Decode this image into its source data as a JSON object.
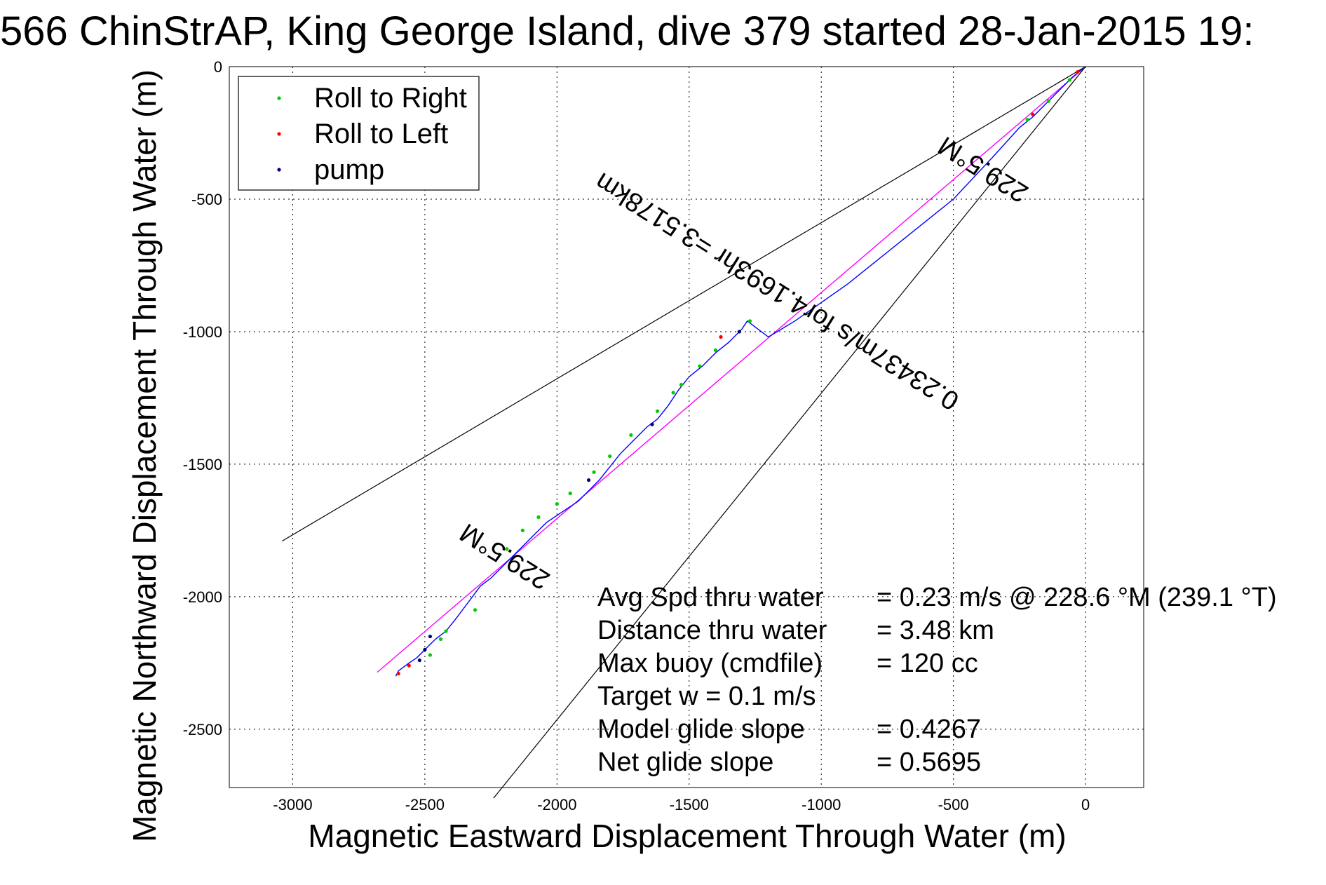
{
  "chart_data": {
    "type": "line",
    "title": "566 ChinStrAP, King George Island, dive 379 started 28-Jan-2015 19:",
    "xlabel": "Magnetic Eastward Displacement Through Water (m)",
    "ylabel": "Magnetic Northward Displacement Through Water (m)",
    "xlim": [
      -3240,
      220
    ],
    "ylim": [
      -2720,
      0
    ],
    "xticks": [
      -3000,
      -2500,
      -2000,
      -1500,
      -1000,
      -500,
      0
    ],
    "yticks": [
      0,
      -500,
      -1000,
      -1500,
      -2000,
      -2500
    ],
    "grid": true,
    "legend_position": "top-left",
    "legend": [
      "Roll to Right",
      "Roll to Left",
      "pump"
    ],
    "colors": {
      "track": "#0000ff",
      "roll_right": "#00cc00",
      "roll_left": "#ff0000",
      "pump": "#000080",
      "heading_line": "#ff00ff",
      "bounds": "#000000"
    },
    "track": {
      "x": [
        0,
        -50,
        -100,
        -150,
        -200,
        -250,
        -350,
        -500,
        -600,
        -700,
        -800,
        -900,
        -1000,
        -1100,
        -1200,
        -1280,
        -1300,
        -1350,
        -1400,
        -1450,
        -1500,
        -1540,
        -1580,
        -1620,
        -1660,
        -1700,
        -1760,
        -1800,
        -1840,
        -1880,
        -1920,
        -1980,
        -2040,
        -2100,
        -2150,
        -2200,
        -2250,
        -2290,
        -2320,
        -2350,
        -2380,
        -2420,
        -2460,
        -2480,
        -2500,
        -2530,
        -2560,
        -2600,
        -2610
      ],
      "y": [
        0,
        -40,
        -90,
        -140,
        -190,
        -230,
        -340,
        -500,
        -580,
        -660,
        -740,
        -820,
        -890,
        -960,
        -1020,
        -960,
        -990,
        -1040,
        -1080,
        -1130,
        -1170,
        -1220,
        -1280,
        -1330,
        -1360,
        -1400,
        -1460,
        -1510,
        -1560,
        -1600,
        -1640,
        -1680,
        -1720,
        -1780,
        -1830,
        -1880,
        -1930,
        -1960,
        -2000,
        -2040,
        -2080,
        -2130,
        -2160,
        -2180,
        -2200,
        -2230,
        -2250,
        -2280,
        -2300
      ]
    },
    "roll_right_points": {
      "x": [
        -60,
        -140,
        -220,
        -1270,
        -1310,
        -1400,
        -1460,
        -1530,
        -1560,
        -1620,
        -1720,
        -1800,
        -1860,
        -1950,
        -2000,
        -2070,
        -2130,
        -2190,
        -2310,
        -2420,
        -2440,
        -2480
      ],
      "y": [
        -50,
        -130,
        -200,
        -960,
        -1000,
        -1070,
        -1130,
        -1200,
        -1230,
        -1300,
        -1390,
        -1470,
        -1530,
        -1610,
        -1650,
        -1700,
        -1750,
        -1820,
        -2050,
        -2130,
        -2160,
        -2220
      ]
    },
    "roll_left_points": {
      "x": [
        -30,
        -200,
        -1380,
        -2560,
        -2600
      ],
      "y": [
        -20,
        -180,
        -1020,
        -2260,
        -2290
      ]
    },
    "pump_points": {
      "x": [
        -1310,
        -1640,
        -1880,
        -2480,
        -2500,
        -2520
      ],
      "y": [
        -1000,
        -1350,
        -1560,
        -2150,
        -2200,
        -2240
      ]
    },
    "heading_line": {
      "x": [
        0,
        -2680
      ],
      "y": [
        0,
        -2285
      ]
    },
    "bound_line_upper": {
      "x": [
        0,
        -3040
      ],
      "y": [
        0,
        -1790
      ]
    },
    "bound_line_lower": {
      "x": [
        0,
        -2240
      ],
      "y": [
        0,
        -2760
      ]
    },
    "annotations": [
      {
        "text": "229.5°M",
        "x": -370,
        "y": -360,
        "rotation": 212
      },
      {
        "text": "0.23437m/s for4.1693hr =3.5178km",
        "x": -1150,
        "y": -820,
        "rotation": 212
      },
      {
        "text": "229.5°M",
        "x": -2180,
        "y": -1820,
        "rotation": 212
      }
    ],
    "stats": [
      {
        "label": "Avg Spd thru water",
        "value": "=  0.23 m/s @ 228.6 °M (239.1 °T)"
      },
      {
        "label": "Distance thru water",
        "value": "=  3.48 km"
      },
      {
        "label": "Max buoy (cmdfile)",
        "value": "= 120 cc"
      },
      {
        "label": "Target w    = 0.1 m/s",
        "value": ""
      },
      {
        "label": "Model glide slope",
        "value": "= 0.4267"
      },
      {
        "label": "Net glide slope",
        "value": "= 0.5695"
      }
    ]
  }
}
